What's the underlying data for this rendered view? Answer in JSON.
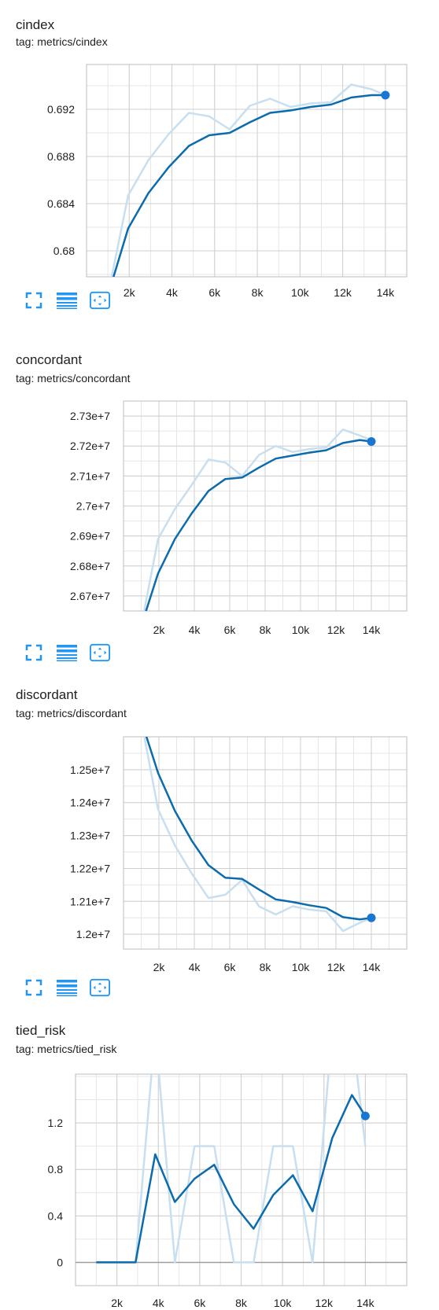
{
  "colors": {
    "line": "#1976d2",
    "smooth_dark": "#0b6bad",
    "raw_light": "#c8dff0",
    "grid": "#d0d0d0",
    "icon": "#2196f3"
  },
  "icons": [
    "fullscreen-icon",
    "toggle-log-scale-icon",
    "fit-domain-icon"
  ],
  "charts": [
    {
      "title": "cindex",
      "tag": "tag: metrics/cindex",
      "yticks": [
        "0.692",
        "0.688",
        "0.684",
        "0.68"
      ],
      "xticks": [
        "2k",
        "4k",
        "6k",
        "8k",
        "10k",
        "12k",
        "14k"
      ]
    },
    {
      "title": "concordant",
      "tag": "tag: metrics/concordant",
      "yticks": [
        "2.73e+7",
        "2.72e+7",
        "2.71e+7",
        "2.7e+7",
        "2.69e+7",
        "2.68e+7",
        "2.67e+7"
      ],
      "xticks": [
        "2k",
        "4k",
        "6k",
        "8k",
        "10k",
        "12k",
        "14k"
      ]
    },
    {
      "title": "discordant",
      "tag": "tag: metrics/discordant",
      "yticks": [
        "1.25e+7",
        "1.24e+7",
        "1.23e+7",
        "1.22e+7",
        "1.21e+7",
        "1.2e+7"
      ],
      "xticks": [
        "2k",
        "4k",
        "6k",
        "8k",
        "10k",
        "12k",
        "14k"
      ]
    },
    {
      "title": "tied_risk",
      "tag": "tag: metrics/tied_risk",
      "yticks": [
        "1.2",
        "0.8",
        "0.4",
        "0"
      ],
      "xticks": [
        "2k",
        "4k",
        "6k",
        "8k",
        "10k",
        "12k",
        "14k"
      ]
    }
  ],
  "chart_data": [
    {
      "type": "line",
      "title": "cindex",
      "xlim": [
        0,
        15000
      ],
      "ylim": [
        0.6778,
        0.6958
      ],
      "yticks": [
        0.692,
        0.688,
        0.684,
        0.68
      ],
      "xticks": [
        2000,
        4000,
        6000,
        8000,
        10000,
        12000,
        14000
      ],
      "series": [
        {
          "role": "raw",
          "x": [
            1000,
            1950,
            2900,
            3850,
            4800,
            5750,
            6700,
            7650,
            8600,
            9550,
            10500,
            11450,
            12400,
            13350,
            14000
          ],
          "y": [
            0.6762,
            0.6847,
            0.6877,
            0.6899,
            0.6917,
            0.6914,
            0.6903,
            0.6923,
            0.6929,
            0.6922,
            0.6925,
            0.6926,
            0.6941,
            0.6937,
            0.6932
          ]
        },
        {
          "role": "smoothed",
          "x": [
            1000,
            1950,
            2900,
            3850,
            4800,
            5750,
            6700,
            7650,
            8600,
            9550,
            10500,
            11450,
            12400,
            13350,
            14000
          ],
          "y": [
            0.6762,
            0.6819,
            0.6849,
            0.6871,
            0.6889,
            0.6898,
            0.69,
            0.6909,
            0.6917,
            0.6919,
            0.6922,
            0.6924,
            0.693,
            0.6932,
            0.6932
          ]
        }
      ]
    },
    {
      "type": "line",
      "title": "concordant",
      "xlim": [
        0,
        16000
      ],
      "ylim": [
        26650000,
        27350000
      ],
      "yticks": [
        27300000,
        27200000,
        27100000,
        27000000,
        26900000,
        26800000,
        26700000
      ],
      "xticks": [
        2000,
        4000,
        6000,
        8000,
        10000,
        12000,
        14000
      ],
      "series": [
        {
          "role": "raw",
          "x": [
            1000,
            1950,
            2900,
            3850,
            4800,
            5750,
            6700,
            7650,
            8600,
            9550,
            10500,
            11450,
            12400,
            13350,
            14000
          ],
          "y": [
            26600000,
            26890000,
            26990000,
            27070000,
            27155000,
            27145000,
            27100000,
            27170000,
            27200000,
            27180000,
            27190000,
            27195000,
            27255000,
            27235000,
            27220000
          ]
        },
        {
          "role": "smoothed",
          "x": [
            1000,
            1950,
            2900,
            3850,
            4800,
            5750,
            6700,
            7650,
            8600,
            9550,
            10500,
            11450,
            12400,
            13350,
            14000
          ],
          "y": [
            26600000,
            26775000,
            26890000,
            26975000,
            27050000,
            27090000,
            27095000,
            27128000,
            27158000,
            27168000,
            27178000,
            27186000,
            27210000,
            27220000,
            27215000
          ]
        }
      ]
    },
    {
      "type": "line",
      "title": "discordant",
      "xlim": [
        0,
        16000
      ],
      "ylim": [
        11955000,
        12600000
      ],
      "yticks": [
        12500000,
        12400000,
        12300000,
        12200000,
        12100000,
        12000000
      ],
      "xticks": [
        2000,
        4000,
        6000,
        8000,
        10000,
        12000,
        14000
      ],
      "series": [
        {
          "role": "raw",
          "x": [
            1000,
            1950,
            2900,
            3850,
            4800,
            5750,
            6700,
            7650,
            8600,
            9550,
            10500,
            11450,
            12400,
            13350,
            14000
          ],
          "y": [
            12650000,
            12380000,
            12270000,
            12185000,
            12110000,
            12120000,
            12165000,
            12085000,
            12060000,
            12085000,
            12075000,
            12070000,
            12010000,
            12035000,
            12050000
          ]
        },
        {
          "role": "smoothed",
          "x": [
            1000,
            1950,
            2900,
            3850,
            4800,
            5750,
            6700,
            7650,
            8600,
            9550,
            10500,
            11450,
            12400,
            13350,
            14000
          ],
          "y": [
            12650000,
            12490000,
            12375000,
            12285000,
            12210000,
            12172000,
            12168000,
            12136000,
            12106000,
            12098000,
            12088000,
            12080000,
            12052000,
            12045000,
            12050000
          ]
        }
      ]
    },
    {
      "type": "line",
      "title": "tied_risk",
      "xlim": [
        0,
        16000
      ],
      "ylim": [
        -0.2,
        1.62
      ],
      "yticks": [
        1.2,
        0.8,
        0.4,
        0
      ],
      "xticks": [
        2000,
        4000,
        6000,
        8000,
        10000,
        12000,
        14000
      ],
      "series": [
        {
          "role": "raw",
          "x": [
            1000,
            1950,
            2900,
            3850,
            4800,
            5750,
            6700,
            7650,
            8600,
            9550,
            10500,
            11450,
            12400,
            13350,
            14000
          ],
          "y": [
            0,
            0,
            0,
            2.0,
            0,
            1.0,
            1.0,
            0,
            0,
            1.0,
            1.0,
            0,
            2.0,
            2.0,
            1.0
          ]
        },
        {
          "role": "smoothed",
          "x": [
            1000,
            1950,
            2900,
            3850,
            4800,
            5750,
            6700,
            7650,
            8600,
            9550,
            10500,
            11450,
            12400,
            13350,
            14000
          ],
          "y": [
            0,
            0,
            0,
            0.93,
            0.52,
            0.72,
            0.84,
            0.5,
            0.29,
            0.58,
            0.75,
            0.44,
            1.07,
            1.44,
            1.26
          ]
        }
      ]
    }
  ]
}
